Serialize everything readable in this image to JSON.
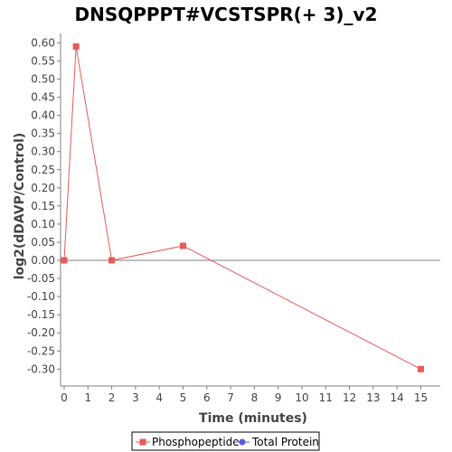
{
  "colors": {
    "phospho": "#e85a5a",
    "protein": "#5a5ae8",
    "zero_line": "#808080",
    "axis": "#808080"
  },
  "chart_data": {
    "type": "line",
    "title": "DNSQPPPT#VCSTSPR(+ 3)_v2",
    "xlabel": "Time (minutes)",
    "ylabel": "log2(dDAVP/Control)",
    "xlim": [
      0,
      16
    ],
    "ylim": [
      -0.34,
      0.62
    ],
    "x_ticks": [
      0,
      1,
      2,
      3,
      4,
      5,
      6,
      7,
      8,
      9,
      10,
      11,
      12,
      13,
      14,
      15
    ],
    "y_ticks": [
      -0.3,
      -0.25,
      -0.2,
      -0.15,
      -0.1,
      -0.05,
      0.0,
      0.05,
      0.1,
      0.15,
      0.2,
      0.25,
      0.3,
      0.35,
      0.4,
      0.45,
      0.5,
      0.55,
      0.6
    ],
    "zero_line": true,
    "grid": false,
    "legend_position": "bottom-center",
    "series": [
      {
        "name": "Phosphopeptide",
        "marker": "square",
        "x": [
          0,
          0.5,
          2,
          5,
          15
        ],
        "y": [
          0.0,
          0.59,
          0.0,
          0.04,
          -0.3
        ]
      },
      {
        "name": "Total Protein",
        "marker": "circle",
        "x": [],
        "y": []
      }
    ]
  }
}
